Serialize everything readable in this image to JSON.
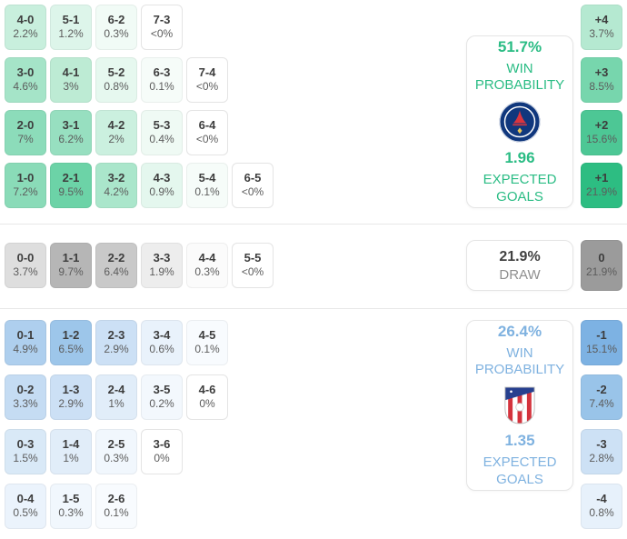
{
  "theme": {
    "home_accent": "#2abc84",
    "away_accent": "#7fb2e0",
    "draw_text": "#8f8f8f",
    "divider": "#e8e8e8"
  },
  "chart_data": {
    "type": "heatmap",
    "home": {
      "team_icon": "psg-crest",
      "summary": {
        "probability": "51.7%",
        "probability_label": "WIN PROBABILITY",
        "expected_goals": "1.96",
        "expected_goals_label": "EXPECTED GOALS"
      },
      "rows": [
        [
          {
            "s": "4-0",
            "p": "2.2%",
            "bg": "#c8efdd"
          },
          {
            "s": "5-1",
            "p": "1.2%",
            "bg": "#ddf5ea"
          },
          {
            "s": "6-2",
            "p": "0.3%",
            "bg": "#f1fbf6"
          },
          {
            "s": "7-3",
            "p": "<0%",
            "bg": "#ffffff"
          }
        ],
        [
          {
            "s": "3-0",
            "p": "4.6%",
            "bg": "#a5e4c8"
          },
          {
            "s": "4-1",
            "p": "3%",
            "bg": "#bdebd4"
          },
          {
            "s": "5-2",
            "p": "0.8%",
            "bg": "#e6f8ef"
          },
          {
            "s": "6-3",
            "p": "0.1%",
            "bg": "#f6fcf9"
          },
          {
            "s": "7-4",
            "p": "<0%",
            "bg": "#ffffff"
          }
        ],
        [
          {
            "s": "2-0",
            "p": "7%",
            "bg": "#8cdcba"
          },
          {
            "s": "3-1",
            "p": "6.2%",
            "bg": "#97dfc0"
          },
          {
            "s": "4-2",
            "p": "2%",
            "bg": "#cbf0df"
          },
          {
            "s": "5-3",
            "p": "0.4%",
            "bg": "#effaf4"
          },
          {
            "s": "6-4",
            "p": "<0%",
            "bg": "#ffffff"
          }
        ],
        [
          {
            "s": "1-0",
            "p": "7.2%",
            "bg": "#8adbb8"
          },
          {
            "s": "2-1",
            "p": "9.5%",
            "bg": "#6cd3a7"
          },
          {
            "s": "3-2",
            "p": "4.2%",
            "bg": "#aae6cb"
          },
          {
            "s": "4-3",
            "p": "0.9%",
            "bg": "#e4f7ee"
          },
          {
            "s": "5-4",
            "p": "0.1%",
            "bg": "#f6fcf9"
          },
          {
            "s": "6-5",
            "p": "<0%",
            "bg": "#ffffff"
          }
        ]
      ],
      "margins": [
        {
          "s": "+4",
          "p": "3.7%",
          "bg": "#b5e9d1"
        },
        {
          "s": "+3",
          "p": "8.5%",
          "bg": "#77d6ad"
        },
        {
          "s": "+2",
          "p": "15.6%",
          "bg": "#4dc795"
        },
        {
          "s": "+1",
          "p": "21.9%",
          "bg": "#2dbd82"
        }
      ]
    },
    "draw": {
      "summary": {
        "probability": "21.9%",
        "label": "DRAW"
      },
      "cells": [
        {
          "s": "0-0",
          "p": "3.7%",
          "bg": "#dedede"
        },
        {
          "s": "1-1",
          "p": "9.7%",
          "bg": "#b6b6b6"
        },
        {
          "s": "2-2",
          "p": "6.4%",
          "bg": "#c9c9c9"
        },
        {
          "s": "3-3",
          "p": "1.9%",
          "bg": "#ededed"
        },
        {
          "s": "4-4",
          "p": "0.3%",
          "bg": "#fbfbfb"
        },
        {
          "s": "5-5",
          "p": "<0%",
          "bg": "#ffffff"
        }
      ],
      "margins": [
        {
          "s": "0",
          "p": "21.9%",
          "bg": "#9b9b9b"
        }
      ]
    },
    "away": {
      "team_icon": "atletico-madrid-crest",
      "summary": {
        "probability": "26.4%",
        "probability_label": "WIN PROBABILITY",
        "expected_goals": "1.35",
        "expected_goals_label": "EXPECTED GOALS"
      },
      "rows": [
        [
          {
            "s": "0-1",
            "p": "4.9%",
            "bg": "#aecfee"
          },
          {
            "s": "1-2",
            "p": "6.5%",
            "bg": "#9dc6ea"
          },
          {
            "s": "2-3",
            "p": "2.9%",
            "bg": "#cce0f5"
          },
          {
            "s": "3-4",
            "p": "0.6%",
            "bg": "#e9f2fb"
          },
          {
            "s": "4-5",
            "p": "0.1%",
            "bg": "#f8fbfe"
          }
        ],
        [
          {
            "s": "0-2",
            "p": "3.3%",
            "bg": "#c5dcf3"
          },
          {
            "s": "1-3",
            "p": "2.9%",
            "bg": "#cce0f5"
          },
          {
            "s": "2-4",
            "p": "1%",
            "bg": "#e1edf9"
          },
          {
            "s": "3-5",
            "p": "0.2%",
            "bg": "#f3f8fd"
          },
          {
            "s": "4-6",
            "p": "0%",
            "bg": "#ffffff"
          }
        ],
        [
          {
            "s": "0-3",
            "p": "1.5%",
            "bg": "#d9e9f7"
          },
          {
            "s": "1-4",
            "p": "1%",
            "bg": "#e1edf9"
          },
          {
            "s": "2-5",
            "p": "0.3%",
            "bg": "#f1f7fd"
          },
          {
            "s": "3-6",
            "p": "0%",
            "bg": "#ffffff"
          }
        ],
        [
          {
            "s": "0-4",
            "p": "0.5%",
            "bg": "#ebf3fc"
          },
          {
            "s": "1-5",
            "p": "0.3%",
            "bg": "#f1f7fd"
          },
          {
            "s": "2-6",
            "p": "0.1%",
            "bg": "#f8fbfe"
          }
        ]
      ],
      "margins": [
        {
          "s": "-1",
          "p": "15.1%",
          "bg": "#7db2e3"
        },
        {
          "s": "-2",
          "p": "7.4%",
          "bg": "#99c4e9"
        },
        {
          "s": "-3",
          "p": "2.8%",
          "bg": "#cde1f5"
        },
        {
          "s": "-4",
          "p": "0.8%",
          "bg": "#e7f1fb"
        }
      ]
    }
  }
}
